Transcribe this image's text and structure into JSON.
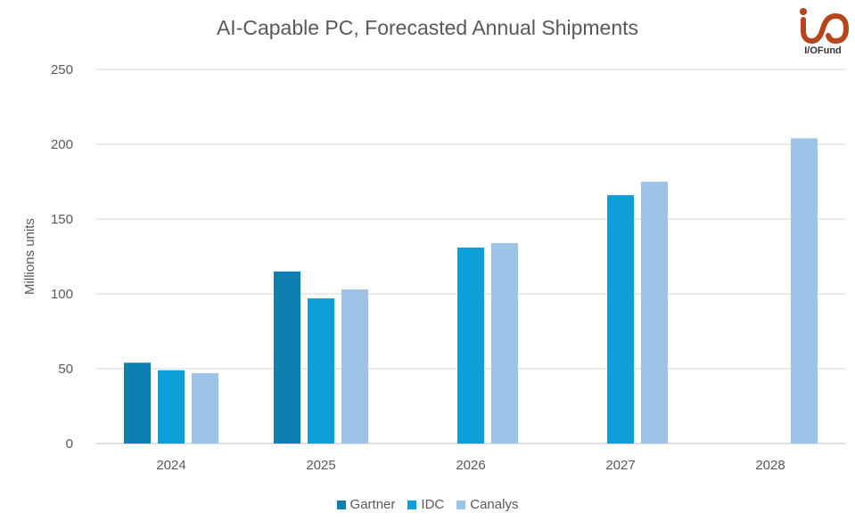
{
  "chart_data": {
    "type": "bar",
    "title": "AI-Capable PC, Forecasted Annual Shipments",
    "ylabel": "Millions units",
    "xlabel": "",
    "categories": [
      "2024",
      "2025",
      "2026",
      "2027",
      "2028"
    ],
    "series": [
      {
        "name": "Gartner",
        "color": "#0E7FB0",
        "values": [
          54,
          115,
          null,
          null,
          null
        ]
      },
      {
        "name": "IDC",
        "color": "#0E9FD8",
        "values": [
          49,
          97,
          131,
          166,
          null
        ]
      },
      {
        "name": "Canalys",
        "color": "#9DC3E6",
        "values": [
          47,
          103,
          134,
          175,
          204
        ]
      }
    ],
    "ylim": [
      0,
      250
    ],
    "yticks": [
      0,
      50,
      100,
      150,
      200,
      250
    ],
    "grid": true,
    "legend": "bottom"
  },
  "logo": {
    "text": "I/OFund",
    "color": "#B5451B"
  }
}
